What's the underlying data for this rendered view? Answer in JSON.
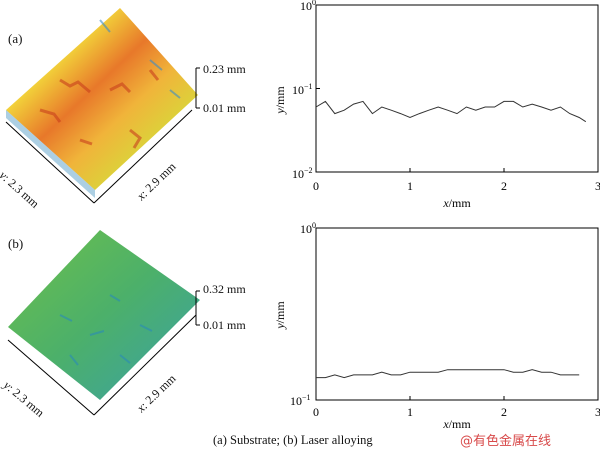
{
  "panels": [
    {
      "tag": "(a)",
      "surface": {
        "z_max": "0.23 mm",
        "z_min": "0.01 mm",
        "y_axis_value": "2.3 mm",
        "x_axis_value": "2.9 mm",
        "palette": "yellow-orange-red"
      },
      "plot": {
        "y_ticks": [
          {
            "base": "10",
            "exp": "0"
          },
          {
            "base": "10",
            "exp": "−1"
          },
          {
            "base": "10",
            "exp": "−2"
          }
        ],
        "x_ticks": [
          "0",
          "1",
          "2",
          "3"
        ],
        "ylabel_var": "y",
        "ylabel_unit": "/mm",
        "xlabel_var": "x",
        "xlabel_unit": "/mm"
      }
    },
    {
      "tag": "(b)",
      "surface": {
        "z_max": "0.32 mm",
        "z_min": "0.01 mm",
        "y_axis_value": "2.3 mm",
        "x_axis_value": "2.9 mm",
        "palette": "green-cyan"
      },
      "plot": {
        "y_ticks": [
          {
            "base": "10",
            "exp": "0"
          },
          {
            "base": "10",
            "exp": "−1"
          }
        ],
        "x_ticks": [
          "0",
          "1",
          "2",
          "3"
        ],
        "ylabel_var": "y",
        "ylabel_unit": "/mm",
        "xlabel_var": "x",
        "xlabel_unit": "/mm"
      }
    }
  ],
  "axis_prefix_y": "y",
  "axis_prefix_x": "x",
  "caption": "(a) Substrate; (b) Laser alloying",
  "watermark": "@有色金属在线",
  "colors": {
    "trace": "#333333",
    "axis": "#000000"
  },
  "chart_data": [
    {
      "type": "line",
      "xlim": [
        0,
        3
      ],
      "ylim": [
        0.01,
        1
      ],
      "yscale": "log",
      "x": [
        0,
        0.1,
        0.2,
        0.3,
        0.4,
        0.5,
        0.6,
        0.7,
        0.8,
        0.9,
        1.0,
        1.1,
        1.2,
        1.3,
        1.4,
        1.5,
        1.6,
        1.7,
        1.8,
        1.9,
        2.0,
        2.1,
        2.2,
        2.3,
        2.4,
        2.5,
        2.6,
        2.7,
        2.8,
        2.87
      ],
      "values": [
        0.06,
        0.07,
        0.05,
        0.055,
        0.065,
        0.07,
        0.05,
        0.06,
        0.055,
        0.05,
        0.045,
        0.05,
        0.055,
        0.06,
        0.055,
        0.05,
        0.06,
        0.055,
        0.06,
        0.06,
        0.07,
        0.07,
        0.06,
        0.065,
        0.06,
        0.055,
        0.06,
        0.05,
        0.045,
        0.04
      ],
      "grid": false
    },
    {
      "type": "line",
      "xlim": [
        0,
        3
      ],
      "ylim": [
        0.1,
        1
      ],
      "yscale": "log",
      "x": [
        0,
        0.1,
        0.2,
        0.3,
        0.4,
        0.5,
        0.6,
        0.7,
        0.8,
        0.9,
        1.0,
        1.1,
        1.2,
        1.3,
        1.4,
        1.5,
        1.6,
        1.7,
        1.8,
        1.9,
        2.0,
        2.1,
        2.2,
        2.3,
        2.4,
        2.5,
        2.6,
        2.7,
        2.8
      ],
      "values": [
        0.135,
        0.135,
        0.14,
        0.135,
        0.14,
        0.14,
        0.14,
        0.145,
        0.14,
        0.14,
        0.145,
        0.145,
        0.145,
        0.145,
        0.15,
        0.15,
        0.15,
        0.15,
        0.15,
        0.15,
        0.15,
        0.145,
        0.145,
        0.15,
        0.145,
        0.145,
        0.14,
        0.14,
        0.14
      ],
      "grid": false
    }
  ]
}
